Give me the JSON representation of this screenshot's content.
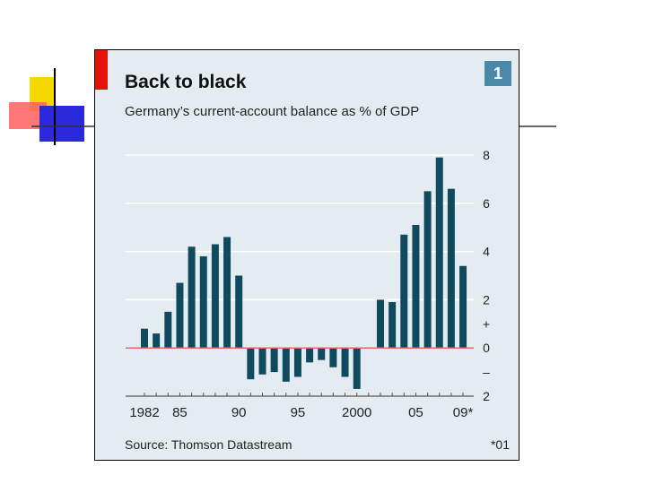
{
  "chart_data": {
    "type": "bar",
    "title": "Back to black",
    "subtitle": "Germany’s current-account balance as % of GDP",
    "badge": "1",
    "source": "Source: Thomson Datastream",
    "footnote": "*01",
    "x": [
      1982,
      1983,
      1984,
      1985,
      1986,
      1987,
      1988,
      1989,
      1990,
      1991,
      1992,
      1993,
      1994,
      1995,
      1996,
      1997,
      1998,
      1999,
      2000,
      2001,
      2002,
      2003,
      2004,
      2005,
      2006,
      2007,
      2008,
      2009
    ],
    "values": [
      0.8,
      0.6,
      1.5,
      2.7,
      4.2,
      3.8,
      4.3,
      4.6,
      3.0,
      -1.3,
      -1.1,
      -1.0,
      -1.4,
      -1.2,
      -0.6,
      -0.5,
      -0.8,
      -1.2,
      -1.7,
      null,
      2.0,
      1.9,
      4.7,
      5.1,
      6.5,
      7.9,
      6.6,
      3.4
    ],
    "xtick_labels": [
      "1982",
      "85",
      "90",
      "95",
      "2000",
      "05",
      "09*"
    ],
    "xtick_years": [
      1982,
      1985,
      1990,
      1995,
      2000,
      2005,
      2009
    ],
    "yticks": [
      {
        "value": 8,
        "label": "8"
      },
      {
        "value": 6,
        "label": "6"
      },
      {
        "value": 4,
        "label": "4"
      },
      {
        "value": 2,
        "label": "2"
      },
      {
        "value": 1,
        "label": "+"
      },
      {
        "value": 0,
        "label": "0"
      },
      {
        "value": -1,
        "label": "–"
      },
      {
        "value": -2,
        "label": "2"
      }
    ],
    "ylim": [
      -2,
      8
    ],
    "grid": true,
    "colors": {
      "bar": "#0f4a5f",
      "zero_line": "#e06a6a",
      "grid": "#ffffff",
      "background": "#e4ecf1",
      "accent": "#e3120b",
      "badge": "#4a8aa8"
    }
  }
}
